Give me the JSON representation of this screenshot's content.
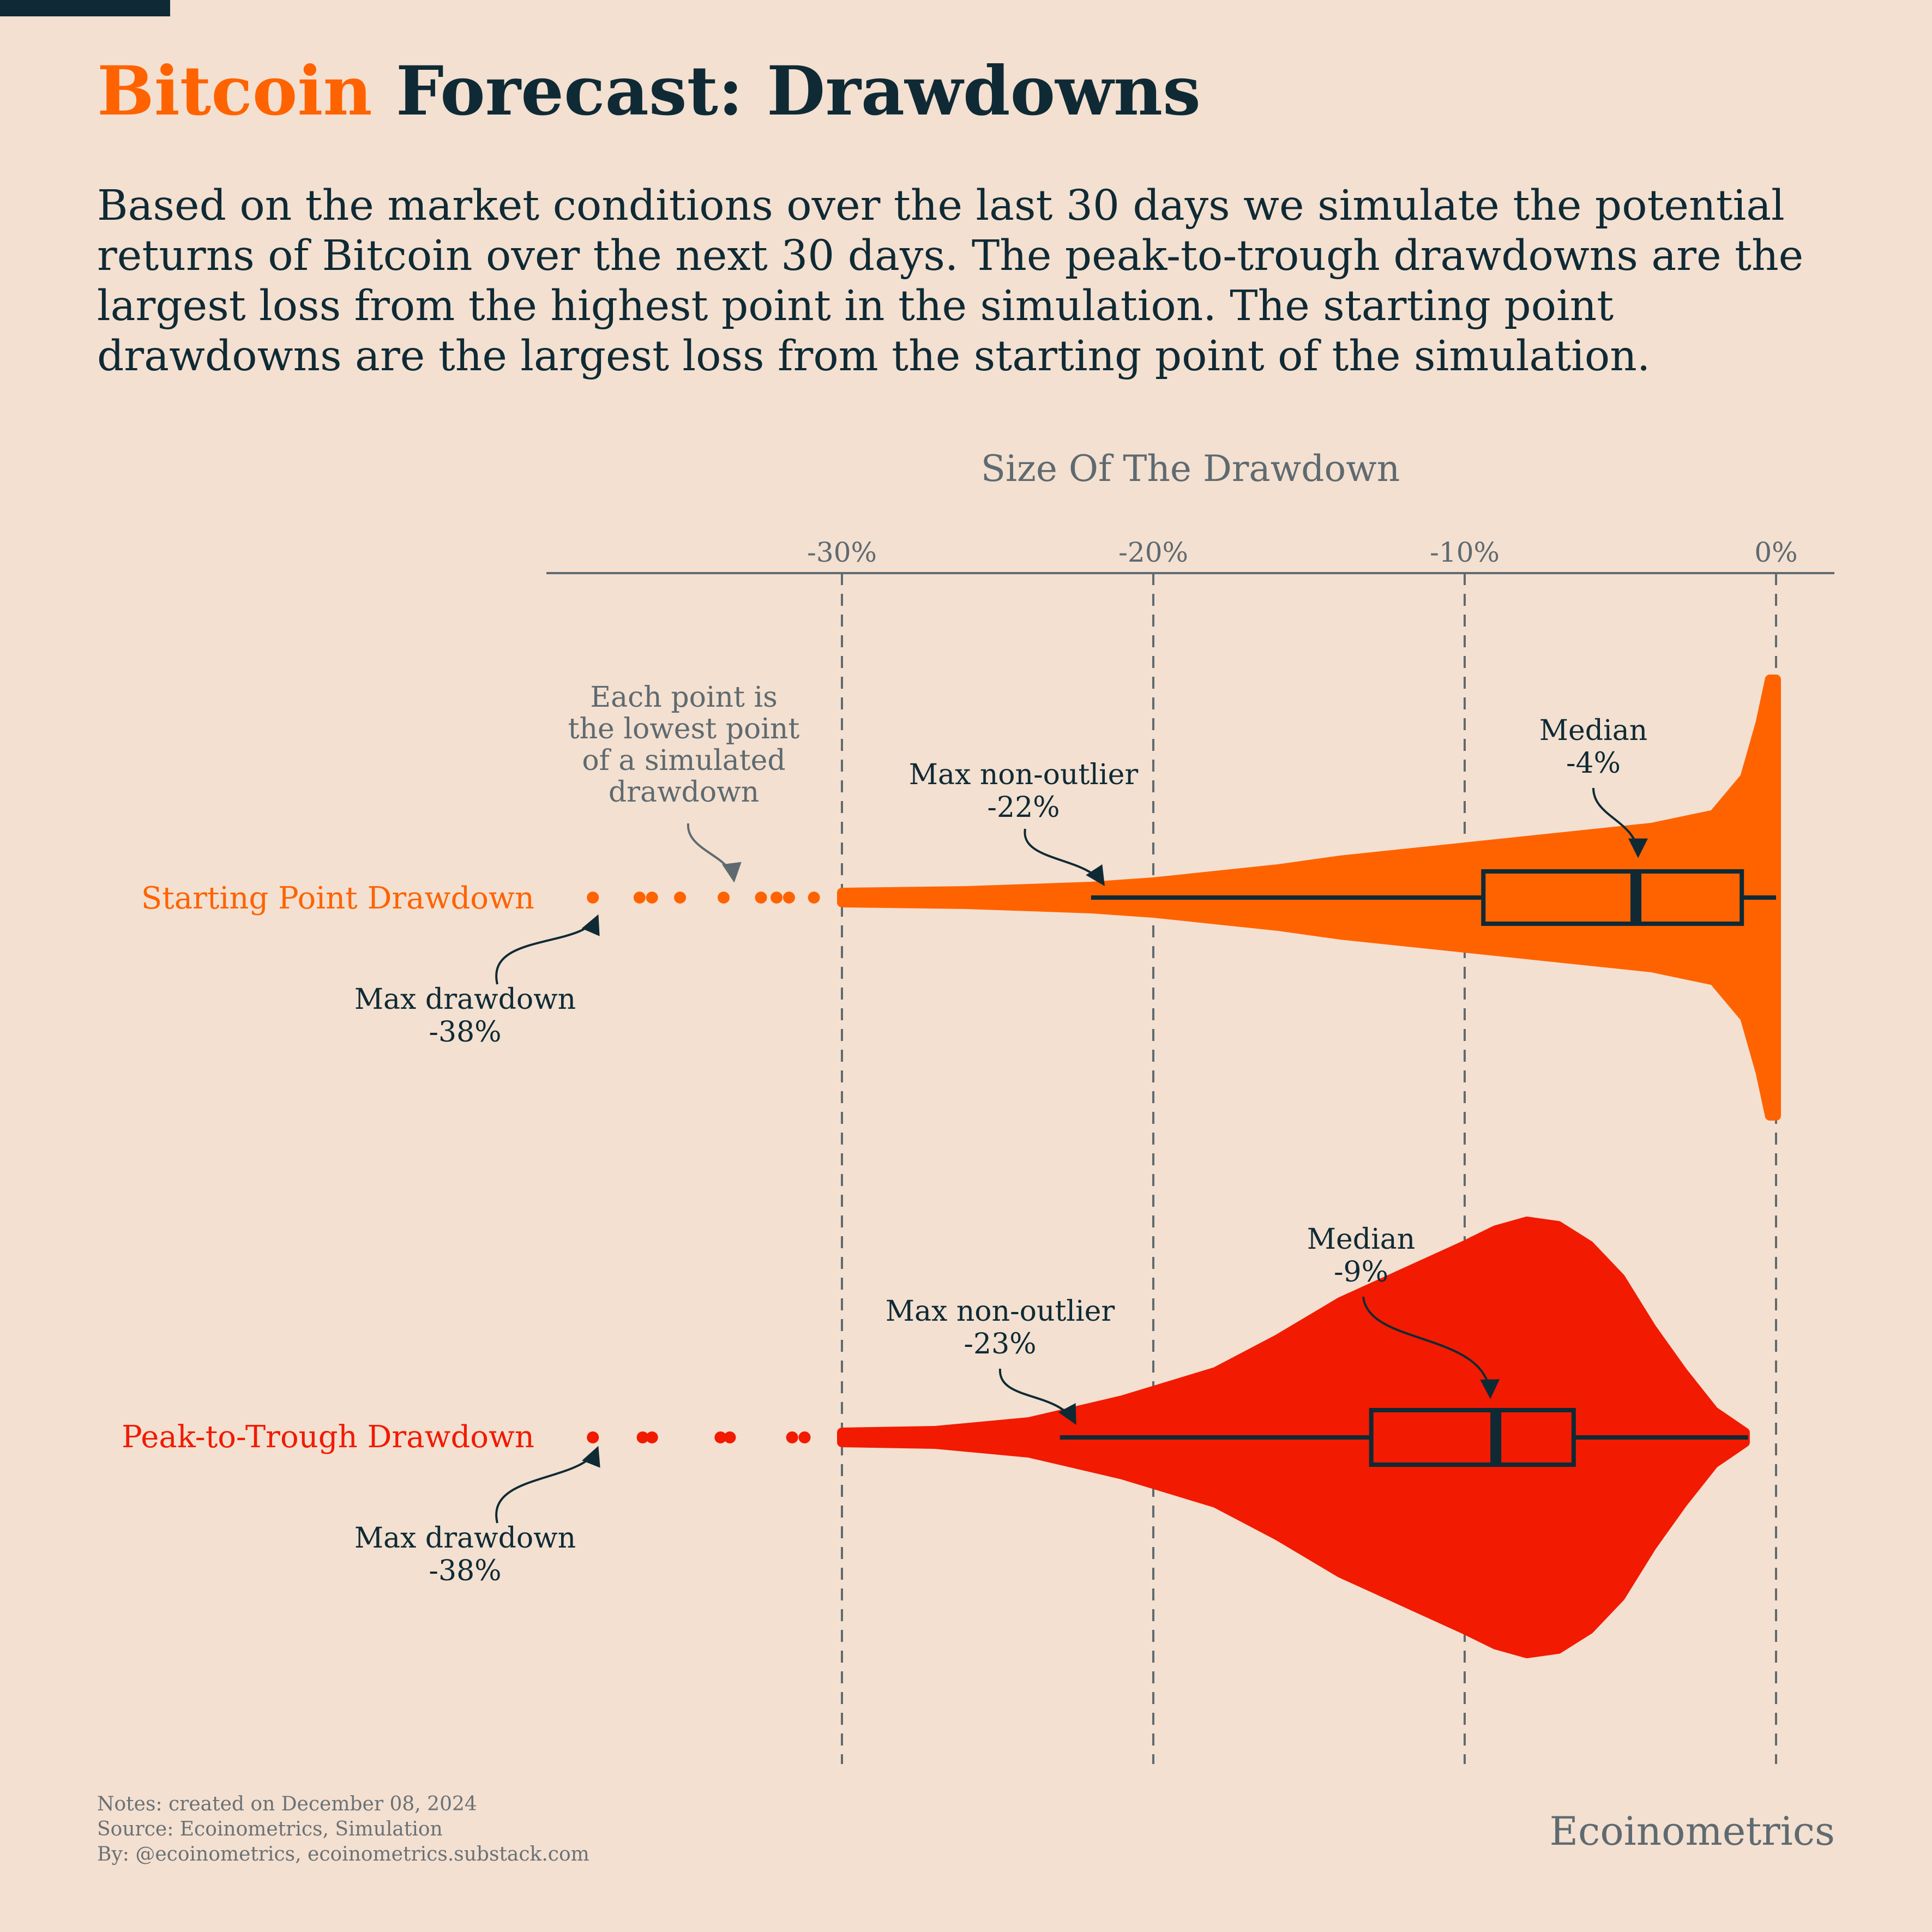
{
  "header": {
    "title_accent": "Bitcoin",
    "title_rest": "Forecast: Drawdowns",
    "subtitle": "Based on the market conditions over the last 30 days we simulate the potential returns of Bitcoin over the next 30 days. The peak-to-trough drawdowns are the largest loss from the highest point in the simulation. The starting point drawdowns are the largest loss from the starting point of the simulation."
  },
  "colors": {
    "background": "#f3e0d0",
    "starting_point": "#ff6300",
    "peak_to_trough": "#f21a00",
    "text_dark": "#0f2a35",
    "text_grey": "#5f6a70"
  },
  "chart_data": {
    "type": "violin-boxplot",
    "xlabel": "Size Of The Drawdown",
    "xlim": [
      -40,
      2
    ],
    "xticks": [
      -30,
      -20,
      -10,
      0
    ],
    "xtick_labels": [
      "-30%",
      "-20%",
      "-10%",
      "0%"
    ],
    "grid": "vertical dashed",
    "series": [
      {
        "name": "Starting Point Drawdown",
        "color": "#ff6300",
        "box": {
          "whisker_low": -22,
          "q1": -9.4,
          "median": -4.5,
          "q3": -1.1,
          "whisker_high": 0
        },
        "outliers": [
          -38,
          -36.5,
          -36.1,
          -35.2,
          -33.8,
          -32.6,
          -32.1,
          -31.7,
          -30.9
        ],
        "density": [
          [
            -30,
            0.02
          ],
          [
            -26,
            0.03
          ],
          [
            -22,
            0.05
          ],
          [
            -20,
            0.07
          ],
          [
            -18,
            0.1
          ],
          [
            -16,
            0.13
          ],
          [
            -14,
            0.17
          ],
          [
            -12,
            0.2
          ],
          [
            -10,
            0.23
          ],
          [
            -8,
            0.26
          ],
          [
            -6,
            0.29
          ],
          [
            -4,
            0.32
          ],
          [
            -2,
            0.38
          ],
          [
            -1,
            0.55
          ],
          [
            -0.5,
            0.8
          ],
          [
            -0.2,
            1.0
          ],
          [
            0,
            1.0
          ]
        ]
      },
      {
        "name": "Peak-to-Trough Drawdown",
        "color": "#f21a00",
        "box": {
          "whisker_low": -23,
          "q1": -13,
          "median": -9,
          "q3": -6.5,
          "whisker_high": -0.9
        },
        "outliers": [
          -38,
          -36.4,
          -36.1,
          -33.9,
          -33.6,
          -31.6,
          -31.2
        ],
        "density": [
          [
            -30,
            0.02
          ],
          [
            -27,
            0.03
          ],
          [
            -24,
            0.07
          ],
          [
            -21,
            0.17
          ],
          [
            -18,
            0.3
          ],
          [
            -16,
            0.45
          ],
          [
            -14,
            0.62
          ],
          [
            -12,
            0.75
          ],
          [
            -10,
            0.88
          ],
          [
            -9,
            0.95
          ],
          [
            -8,
            0.99
          ],
          [
            -7,
            0.97
          ],
          [
            -6,
            0.88
          ],
          [
            -5,
            0.73
          ],
          [
            -4,
            0.5
          ],
          [
            -3,
            0.3
          ],
          [
            -2,
            0.12
          ],
          [
            -1,
            0.02
          ]
        ]
      }
    ],
    "annotations": {
      "each_point": "Each point is\nthe lowest point\nof a simulated\ndrawdown",
      "starting": {
        "median_label": "Median",
        "median_value": "-4%",
        "nonoutlier_label": "Max non-outlier",
        "nonoutlier_value": "-22%",
        "max_label": "Max drawdown",
        "max_value": "-38%"
      },
      "peak": {
        "median_label": "Median",
        "median_value": "-9%",
        "nonoutlier_label": "Max non-outlier",
        "nonoutlier_value": "-23%",
        "max_label": "Max drawdown",
        "max_value": "-38%"
      }
    }
  },
  "footer": {
    "notes": "Notes: created on December 08, 2024",
    "source": "Source: Ecoinometrics, Simulation",
    "by": "By: @ecoinometrics, ecoinometrics.substack.com",
    "brand": "Ecoinometrics"
  }
}
